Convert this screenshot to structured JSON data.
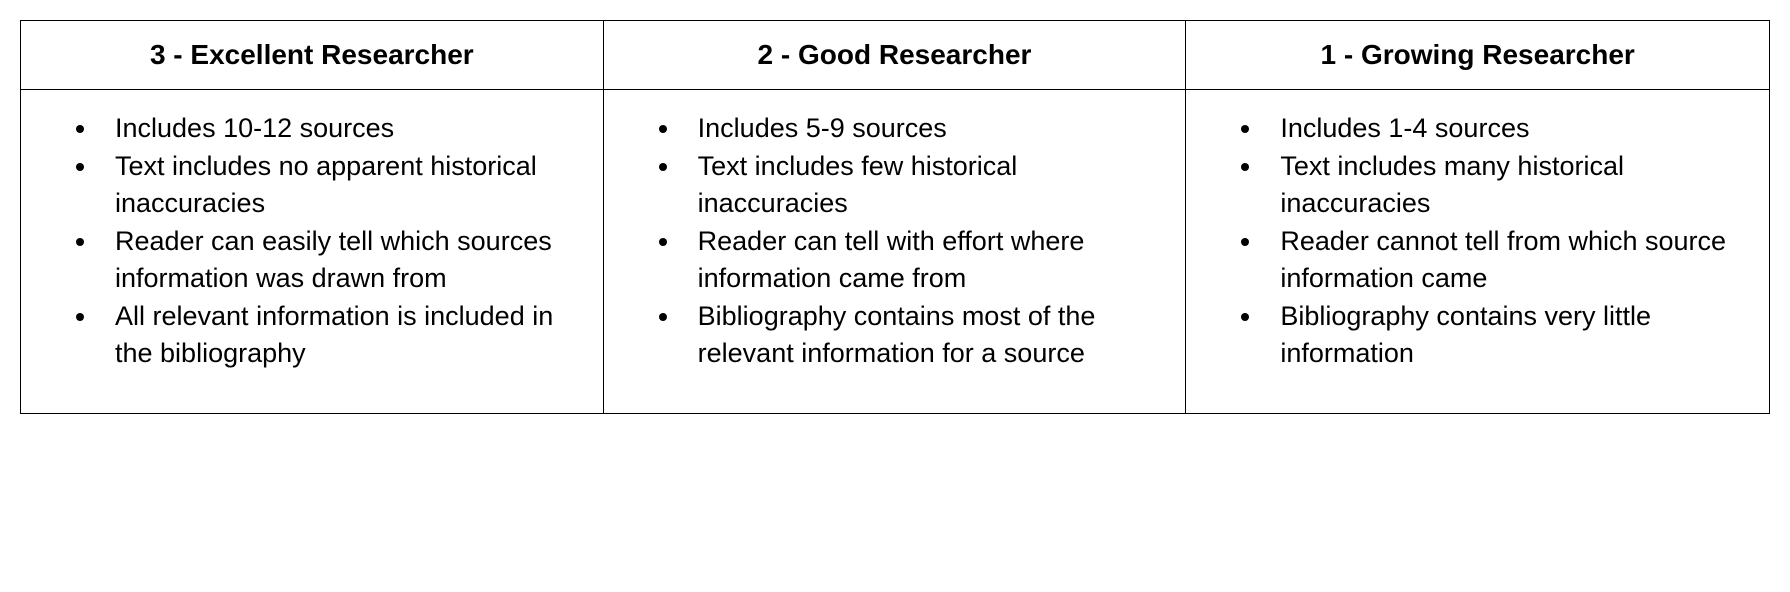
{
  "rubric": {
    "columns": [
      {
        "header": "3 - Excellent Researcher",
        "criteria": [
          "Includes 10-12 sources",
          "Text includes no apparent historical inaccuracies",
          "Reader can easily tell which sources information was drawn from",
          "All relevant information is included in the bibliography"
        ]
      },
      {
        "header": "2 - Good Researcher",
        "criteria": [
          "Includes 5-9 sources",
          "Text includes few historical inaccuracies",
          "Reader can tell with effort where information came from",
          "Bibliography contains most of the relevant information for a source"
        ]
      },
      {
        "header": "1 - Growing Researcher",
        "criteria": [
          "Includes 1-4 sources",
          "Text includes many historical inaccuracies",
          "Reader cannot tell from which source information came",
          "Bibliography contains very little information"
        ]
      }
    ]
  },
  "styling": {
    "type": "table",
    "columns_count": 3,
    "border_color": "#000000",
    "background_color": "#ffffff",
    "text_color": "#000000",
    "header_fontsize": 28,
    "header_fontweight": "bold",
    "body_fontsize": 27,
    "font_family": "Arial"
  }
}
